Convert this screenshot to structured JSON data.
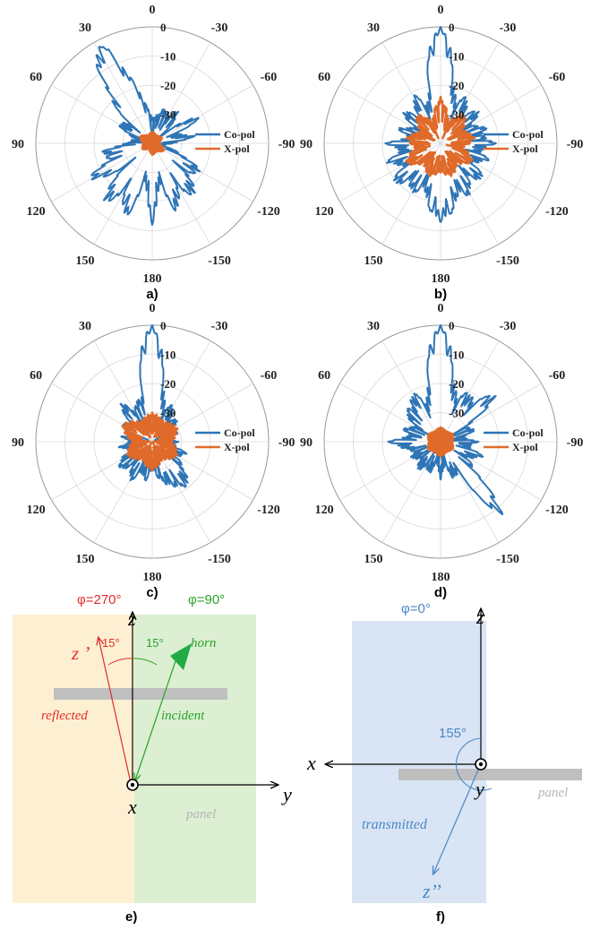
{
  "colors": {
    "co_pol": "#2e75b6",
    "x_pol": "#e06a2a",
    "reflected": "#e32b2b",
    "incident": "#29a329",
    "transmitted": "#4a86c5",
    "panel": "#bfbfbf",
    "region_left": "#fdf0d2",
    "region_right": "#dcefd3",
    "region_f": "#d9e5f4"
  },
  "chart_data": [
    {
      "type": "polar-line",
      "caption": "a)",
      "angle_labels": [
        "0",
        "-30",
        "-60",
        "-90",
        "-120",
        "-150",
        "180",
        "150",
        "120",
        "90",
        "60",
        "30"
      ],
      "radial_ticks": [
        "0",
        "-10",
        "-20",
        "-30"
      ],
      "rlim": [
        -40,
        0
      ],
      "legend": [
        "Co-pol",
        "X-pol"
      ],
      "legend_position": "right",
      "series": [
        {
          "name": "Co-pol",
          "theta": [
            0,
            10,
            20,
            25,
            30,
            35,
            40,
            50,
            60,
            75,
            90,
            100,
            110,
            120,
            130,
            140,
            150,
            160,
            170,
            180,
            190,
            200,
            210,
            220,
            230,
            240,
            250,
            260,
            270,
            280,
            290,
            300,
            310,
            320,
            330,
            340,
            350
          ],
          "r": [
            -31,
            -26,
            -14,
            -4,
            -1,
            -6,
            -15,
            -29,
            -26,
            -34,
            -31,
            -22,
            -24,
            -14,
            -26,
            -13,
            -20,
            -12,
            -28,
            -12,
            -27,
            -14,
            -22,
            -16,
            -24,
            -20,
            -30,
            -36,
            -33,
            -25,
            -31,
            -20,
            -35,
            -25,
            -29,
            -27,
            -30
          ]
        },
        {
          "name": "X-pol",
          "theta": [
            0,
            30,
            60,
            90,
            120,
            150,
            180,
            210,
            240,
            270,
            300,
            330
          ],
          "r": [
            -36,
            -37,
            -35,
            -37,
            -36,
            -38,
            -36,
            -37,
            -35,
            -38,
            -36,
            -37
          ]
        }
      ]
    },
    {
      "type": "polar-line",
      "caption": "b)",
      "angle_labels": [
        "0",
        "-30",
        "-60",
        "-90",
        "-120",
        "-150",
        "180",
        "150",
        "120",
        "90",
        "60",
        "30"
      ],
      "radial_ticks": [
        "0",
        "-10",
        "-20",
        "-30"
      ],
      "rlim": [
        -40,
        0
      ],
      "legend": [
        "Co-pol",
        "X-pol"
      ],
      "legend_position": "right",
      "series": [
        {
          "name": "Co-pol",
          "theta": [
            0,
            5,
            10,
            15,
            20,
            30,
            40,
            50,
            60,
            70,
            80,
            90,
            100,
            110,
            120,
            130,
            140,
            150,
            160,
            170,
            180,
            190,
            200,
            210,
            220,
            230,
            240,
            250,
            260,
            270,
            280,
            290,
            300,
            310,
            320,
            330,
            340,
            350,
            355
          ],
          "r": [
            0,
            -3,
            -14,
            -24,
            -26,
            -20,
            -28,
            -22,
            -30,
            -24,
            -29,
            -21,
            -26,
            -20,
            -25,
            -18,
            -23,
            -20,
            -24,
            -17,
            -13,
            -16,
            -22,
            -19,
            -25,
            -20,
            -27,
            -22,
            -26,
            -21,
            -25,
            -23,
            -28,
            -22,
            -27,
            -21,
            -25,
            -16,
            -4
          ]
        },
        {
          "name": "X-pol",
          "theta": [
            0,
            20,
            40,
            60,
            80,
            100,
            120,
            140,
            160,
            180,
            200,
            220,
            240,
            260,
            280,
            300,
            320,
            340
          ],
          "r": [
            -24,
            -32,
            -27,
            -32,
            -28,
            -31,
            -26,
            -31,
            -28,
            -30,
            -28,
            -31,
            -27,
            -32,
            -28,
            -31,
            -27,
            -32
          ]
        }
      ]
    },
    {
      "type": "polar-line",
      "caption": "c)",
      "angle_labels": [
        "0",
        "-30",
        "-60",
        "-90",
        "-120",
        "-150",
        "180",
        "150",
        "120",
        "90",
        "60",
        "30"
      ],
      "radial_ticks": [
        "0",
        "-10",
        "-20",
        "-30"
      ],
      "rlim": [
        -40,
        0
      ],
      "legend": [
        "Co-pol",
        "X-pol"
      ],
      "legend_position": "right",
      "series": [
        {
          "name": "Co-pol",
          "theta": [
            0,
            5,
            10,
            15,
            20,
            30,
            40,
            50,
            60,
            70,
            80,
            90,
            100,
            110,
            120,
            130,
            140,
            150,
            160,
            170,
            180,
            190,
            200,
            210,
            220,
            230,
            240,
            250,
            260,
            270,
            280,
            290,
            300,
            310,
            320,
            330,
            340,
            350,
            355
          ],
          "r": [
            0,
            -3,
            -16,
            -26,
            -24,
            -28,
            -22,
            -30,
            -27,
            -33,
            -29,
            -32,
            -28,
            -32,
            -27,
            -25,
            -29,
            -24,
            -29,
            -26,
            -31,
            -27,
            -24,
            -22,
            -20,
            -26,
            -30,
            -27,
            -32,
            -31,
            -34,
            -30,
            -33,
            -28,
            -30,
            -25,
            -28,
            -18,
            -5
          ]
        },
        {
          "name": "X-pol",
          "theta": [
            0,
            30,
            60,
            90,
            120,
            150,
            180,
            210,
            240,
            270,
            300,
            330
          ],
          "r": [
            -30,
            -32,
            -28,
            -33,
            -30,
            -33,
            -30,
            -33,
            -30,
            -33,
            -30,
            -32
          ]
        }
      ]
    },
    {
      "type": "polar-line",
      "caption": "d)",
      "angle_labels": [
        "0",
        "-30",
        "-60",
        "-90",
        "-120",
        "-150",
        "180",
        "150",
        "120",
        "90",
        "60",
        "30"
      ],
      "radial_ticks": [
        "0",
        "-10",
        "-20",
        "-30"
      ],
      "rlim": [
        -40,
        0
      ],
      "legend": [
        "Co-pol",
        "X-pol"
      ],
      "legend_position": "right",
      "series": [
        {
          "name": "Co-pol",
          "theta": [
            0,
            5,
            10,
            15,
            20,
            30,
            40,
            50,
            60,
            70,
            80,
            90,
            100,
            110,
            120,
            130,
            140,
            150,
            160,
            170,
            180,
            190,
            200,
            210,
            220,
            230,
            240,
            250,
            260,
            270,
            280,
            290,
            300,
            310,
            320,
            330,
            340,
            350,
            355
          ],
          "r": [
            0,
            -3,
            -14,
            -22,
            -26,
            -20,
            -24,
            -24,
            -30,
            -26,
            -29,
            -22,
            -27,
            -30,
            -28,
            -31,
            -27,
            -30,
            -28,
            -33,
            -27,
            -32,
            -26,
            -28,
            -5,
            -25,
            -29,
            -24,
            -30,
            -27,
            -32,
            -27,
            -30,
            -14,
            -22,
            -20,
            -24,
            -16,
            -4
          ]
        },
        {
          "name": "X-pol",
          "theta": [
            0,
            30,
            60,
            90,
            120,
            150,
            180,
            210,
            240,
            270,
            300,
            330
          ],
          "r": [
            -35,
            -36,
            -35,
            -36,
            -35,
            -36,
            -35,
            -36,
            -35,
            -36,
            -35,
            -36
          ]
        }
      ]
    }
  ],
  "diagram_e": {
    "caption": "e)",
    "phi_left": "φ=270°",
    "phi_right": "φ=90°",
    "axis_z": "z",
    "axis_z_prime": "z ’",
    "axis_y": "y",
    "axis_x": "x",
    "angle_left": "15°",
    "angle_right": "15°",
    "horn": "horn",
    "reflected": "reflected",
    "incident": "incident",
    "panel": "panel"
  },
  "diagram_f": {
    "caption": "f)",
    "phi": "φ=0°",
    "axis_z": "z",
    "axis_x": "x",
    "axis_y": "y",
    "angle": "155°",
    "transmitted": "transmitted",
    "axis_z_dprime": "z’’",
    "panel": "panel"
  }
}
